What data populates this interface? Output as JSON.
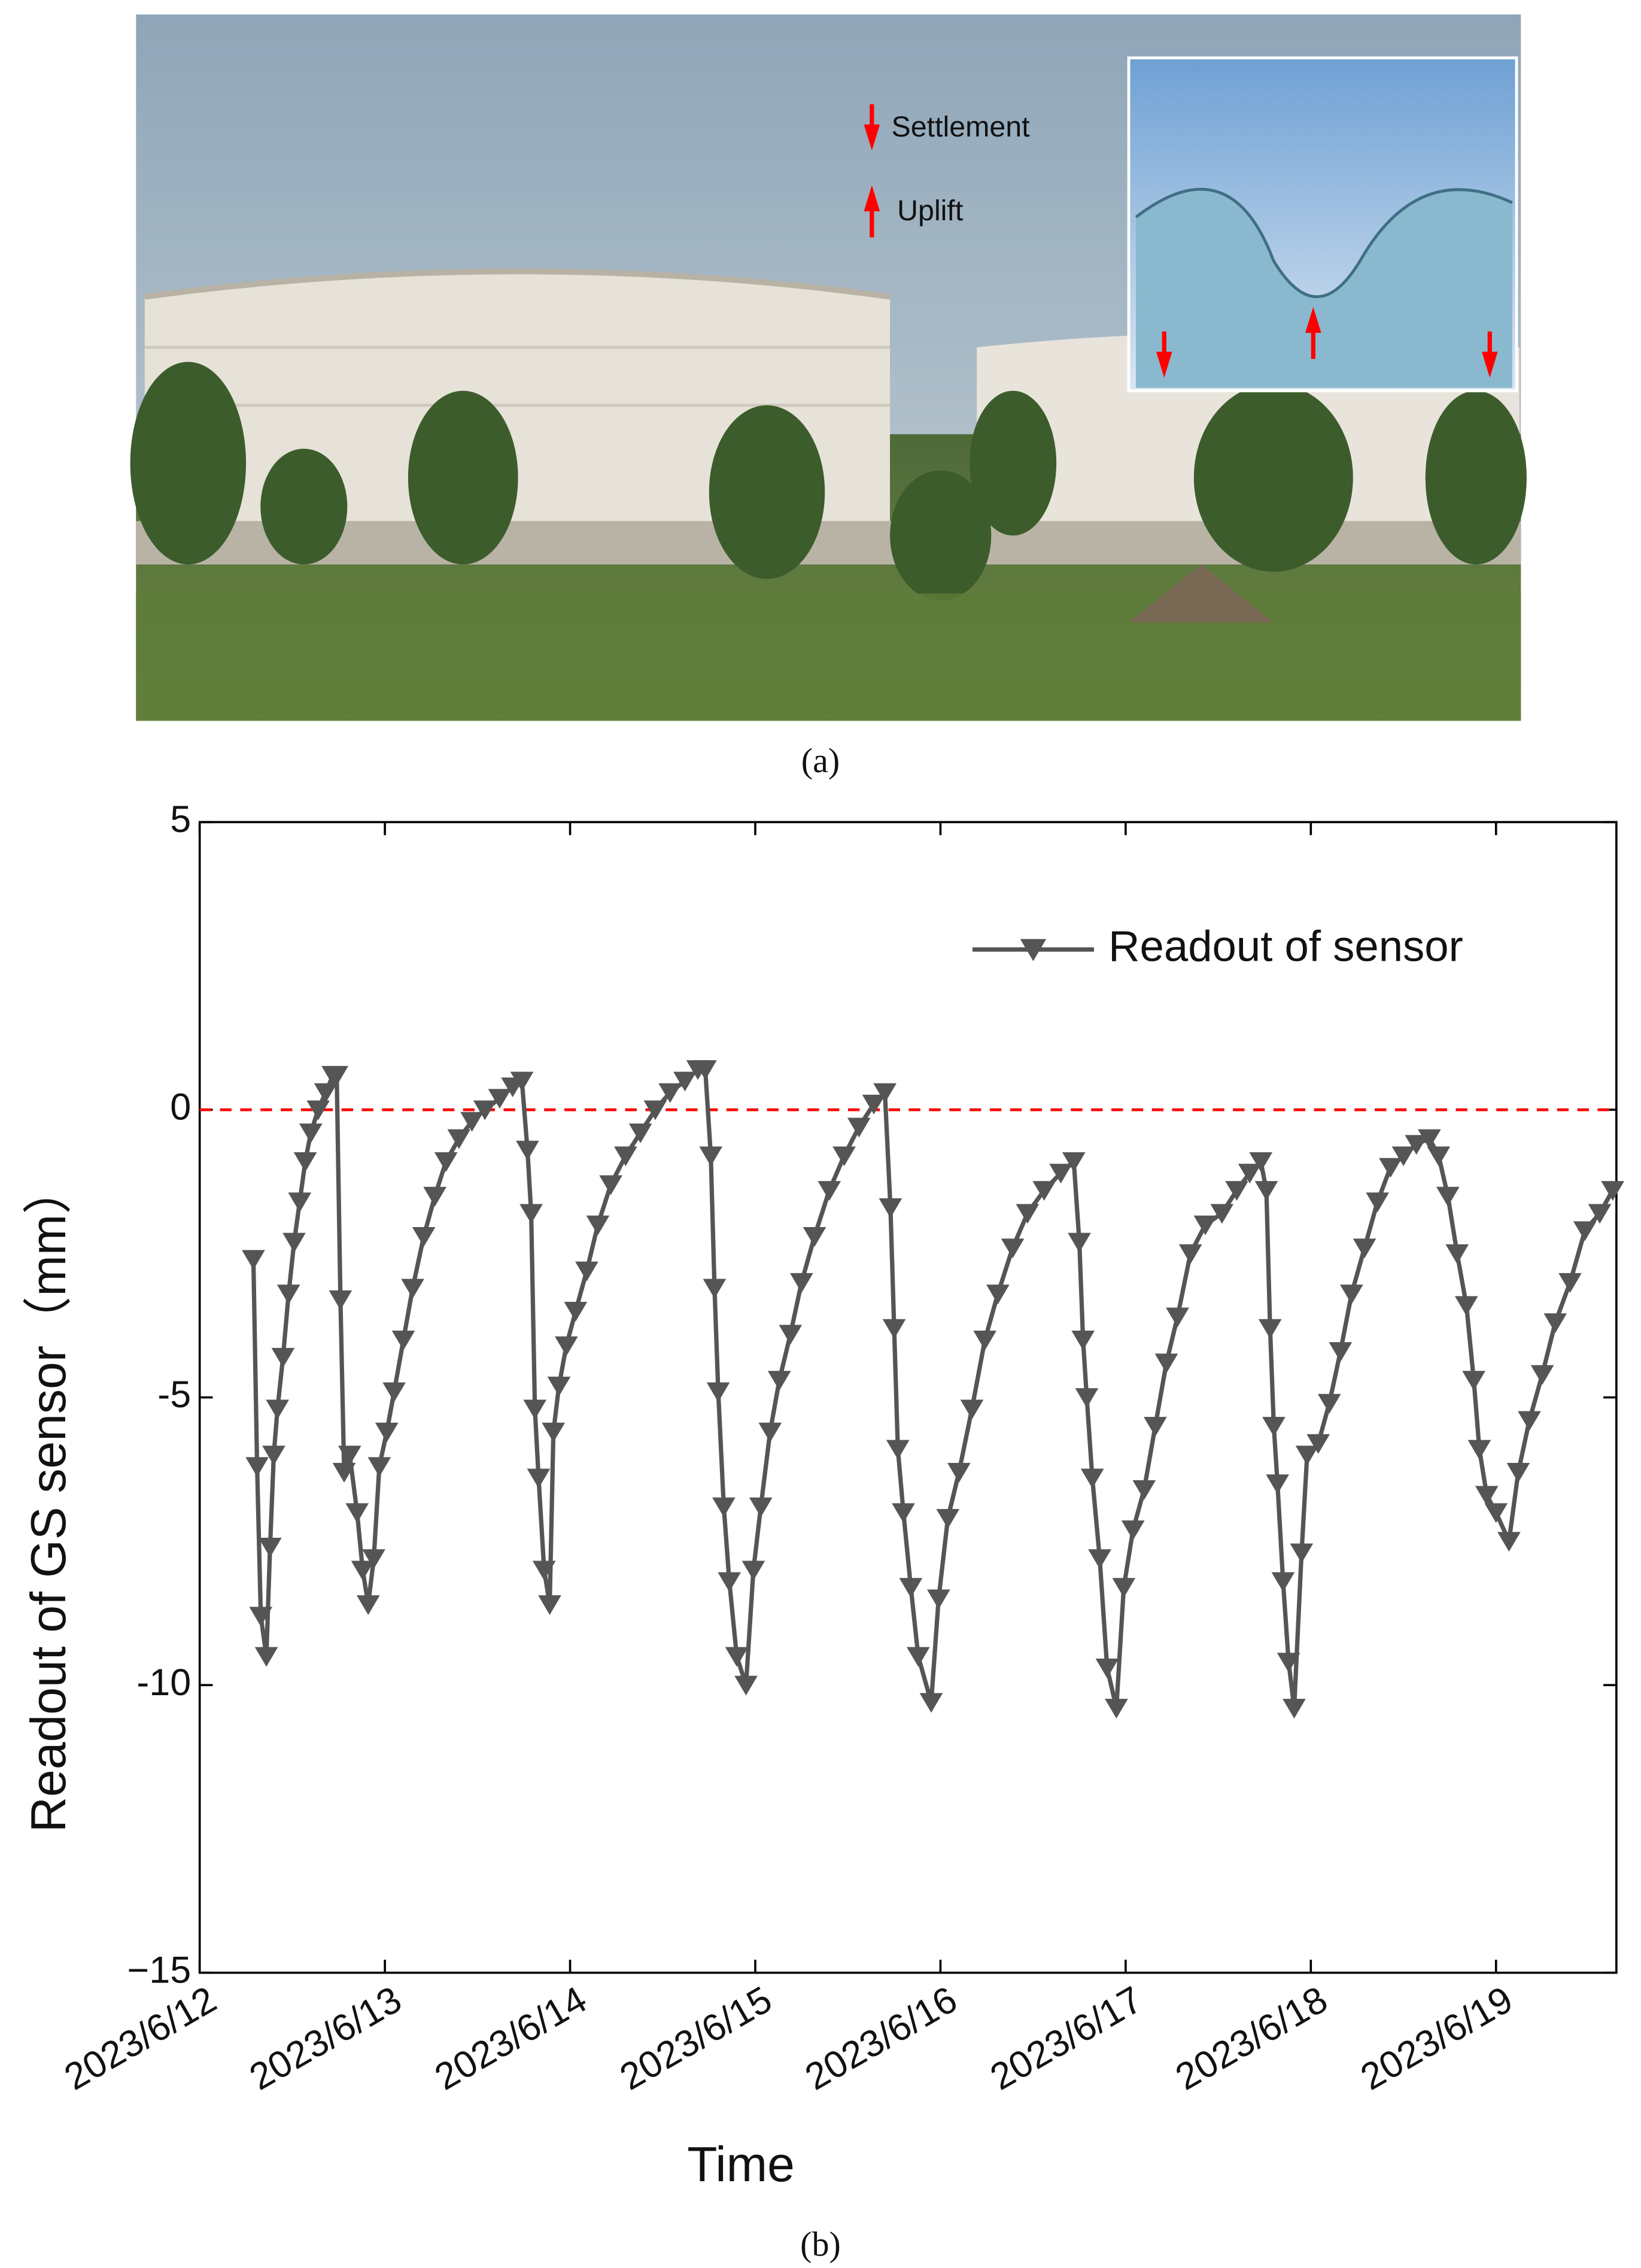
{
  "photo": {
    "settlement_label": "Settlement",
    "uplift_label": "Uplift",
    "caption": "(a)"
  },
  "chart_caption": "(b)",
  "chart_data": {
    "type": "line",
    "y_label": "Readout of GS sensor（mm）",
    "x_label": "Time",
    "x": [
      0.29,
      0.31,
      0.33,
      0.36,
      0.38,
      0.4,
      0.42,
      0.45,
      0.48,
      0.51,
      0.54,
      0.57,
      0.6,
      0.64,
      0.68,
      0.72,
      0.74,
      0.76,
      0.78,
      0.81,
      0.85,
      0.88,
      0.91,
      0.94,
      0.97,
      1.01,
      1.05,
      1.1,
      1.15,
      1.21,
      1.27,
      1.33,
      1.4,
      1.47,
      1.54,
      1.62,
      1.69,
      1.74,
      1.77,
      1.79,
      1.81,
      1.83,
      1.86,
      1.89,
      1.91,
      1.94,
      1.98,
      2.03,
      2.09,
      2.15,
      2.22,
      2.3,
      2.38,
      2.46,
      2.54,
      2.62,
      2.69,
      2.73,
      2.76,
      2.78,
      2.8,
      2.83,
      2.86,
      2.9,
      2.95,
      2.99,
      3.03,
      3.08,
      3.13,
      3.19,
      3.25,
      3.32,
      3.4,
      3.48,
      3.56,
      3.64,
      3.7,
      3.73,
      3.75,
      3.77,
      3.8,
      3.84,
      3.88,
      3.95,
      3.99,
      4.04,
      4.1,
      4.17,
      4.24,
      4.31,
      4.39,
      4.47,
      4.56,
      4.65,
      4.72,
      4.75,
      4.77,
      4.79,
      4.82,
      4.86,
      4.9,
      4.95,
      4.99,
      5.04,
      5.1,
      5.16,
      5.22,
      5.28,
      5.35,
      5.43,
      5.52,
      5.6,
      5.67,
      5.73,
      5.76,
      5.78,
      5.8,
      5.82,
      5.85,
      5.88,
      5.91,
      5.95,
      5.98,
      6.04,
      6.1,
      6.16,
      6.22,
      6.29,
      6.36,
      6.43,
      6.5,
      6.57,
      6.64,
      6.69,
      6.74,
      6.79,
      6.84,
      6.88,
      6.91,
      6.95,
      7.0,
      7.07,
      7.12,
      7.18,
      7.25,
      7.32,
      7.4,
      7.48,
      7.56,
      7.63
    ],
    "series": [
      {
        "name": "Readout of sensor",
        "color": "#555555",
        "marker": "triangle-down",
        "values": [
          -2.6,
          -6.2,
          -8.8,
          -9.5,
          -7.6,
          -6.0,
          -5.2,
          -4.3,
          -3.2,
          -2.3,
          -1.6,
          -0.9,
          -0.4,
          0,
          0.3,
          0.6,
          0.6,
          -3.3,
          -6.3,
          -6.0,
          -7.0,
          -8.0,
          -8.6,
          -7.8,
          -6.2,
          -5.6,
          -4.9,
          -4.0,
          -3.1,
          -2.2,
          -1.5,
          -0.9,
          -0.5,
          -0.2,
          0.0,
          0.2,
          0.4,
          0.5,
          -0.7,
          -1.8,
          -5.2,
          -6.4,
          -8.0,
          -8.6,
          -5.6,
          -4.8,
          -4.1,
          -3.5,
          -2.8,
          -2.0,
          -1.3,
          -0.8,
          -0.4,
          0.0,
          0.3,
          0.5,
          0.7,
          0.7,
          -0.8,
          -3.1,
          -4.9,
          -6.9,
          -8.2,
          -9.5,
          -10.0,
          -8.0,
          -6.9,
          -5.6,
          -4.7,
          -3.9,
          -3.0,
          -2.2,
          -1.4,
          -0.8,
          -0.3,
          0.1,
          0.3,
          -1.7,
          -3.8,
          -5.9,
          -7.0,
          -8.3,
          -9.5,
          -10.3,
          -8.5,
          -7.1,
          -6.3,
          -5.2,
          -4.0,
          -3.2,
          -2.4,
          -1.8,
          -1.4,
          -1.1,
          -0.9,
          -2.3,
          -4.0,
          -5.0,
          -6.4,
          -7.8,
          -9.7,
          -10.4,
          -8.3,
          -7.3,
          -6.6,
          -5.5,
          -4.4,
          -3.6,
          -2.5,
          -2.0,
          -1.8,
          -1.4,
          -1.1,
          -0.9,
          -1.4,
          -3.8,
          -5.5,
          -6.5,
          -8.2,
          -9.6,
          -10.4,
          -7.7,
          -6.0,
          -5.8,
          -5.1,
          -4.2,
          -3.2,
          -2.4,
          -1.6,
          -1.0,
          -0.8,
          -0.6,
          -0.5,
          -0.8,
          -1.5,
          -2.5,
          -3.4,
          -4.7,
          -5.9,
          -6.7,
          -7.0,
          -7.5,
          -6.3,
          -5.4,
          -4.6,
          -3.7,
          -3.0,
          -2.1,
          -1.8,
          -1.4
        ]
      }
    ],
    "xlim": [
      0,
      7.65
    ],
    "xticks": [
      {
        "value": 0,
        "label": "2023/6/12"
      },
      {
        "value": 1,
        "label": "2023/6/13"
      },
      {
        "value": 2,
        "label": "2023/6/14"
      },
      {
        "value": 3,
        "label": "2023/6/15"
      },
      {
        "value": 4,
        "label": "2023/6/16"
      },
      {
        "value": 5,
        "label": "2023/6/17"
      },
      {
        "value": 6,
        "label": "2023/6/18"
      },
      {
        "value": 7,
        "label": "2023/6/19"
      }
    ],
    "ylim": [
      -15,
      5
    ],
    "yticks": [
      {
        "value": -15,
        "label": "−15"
      },
      -10,
      -5,
      0,
      5
    ],
    "hline": {
      "value": 0,
      "color": "#ff0000"
    },
    "legend": "top-right",
    "grid": false
  }
}
